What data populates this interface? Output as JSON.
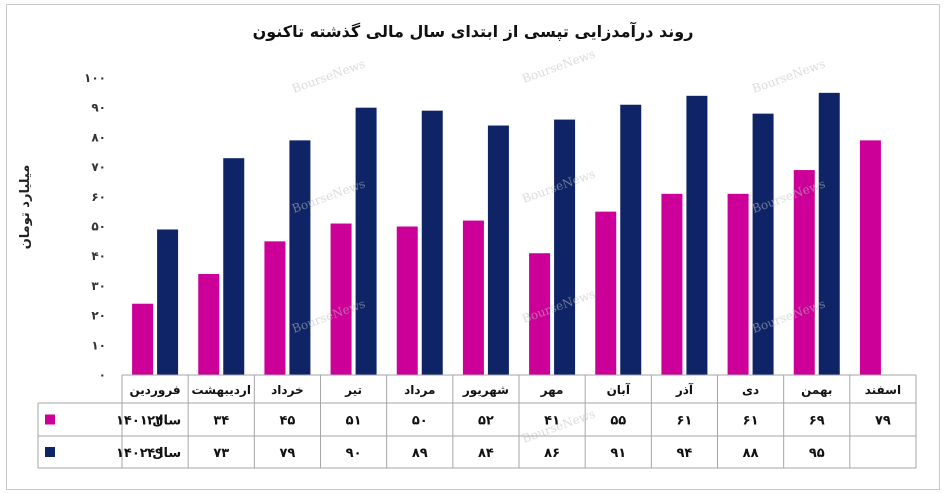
{
  "chart_data": {
    "type": "bar",
    "title": "روند درآمدزایی تپسی از ابتدای سال مالی گذشته تاکنون",
    "ylabel": "میلیارد تومان",
    "xlabel": "",
    "ylim": [
      0,
      100
    ],
    "y_ticks": [
      "۰",
      "۱۰",
      "۲۰",
      "۳۰",
      "۴۰",
      "۵۰",
      "۶۰",
      "۷۰",
      "۸۰",
      "۹۰",
      "۱۰۰"
    ],
    "categories": [
      "فروردین",
      "اردیبهشت",
      "خرداد",
      "تیر",
      "مرداد",
      "شهریور",
      "مهر",
      "آبان",
      "آذر",
      "دی",
      "بهمن",
      "اسفند"
    ],
    "series": [
      {
        "name": "سال ۱۴۰۱",
        "color": "#cc0099",
        "values": [
          24,
          34,
          45,
          51,
          50,
          52,
          41,
          55,
          61,
          61,
          69,
          79
        ],
        "labels": [
          "۲۴",
          "۳۴",
          "۴۵",
          "۵۱",
          "۵۰",
          "۵۲",
          "۴۱",
          "۵۵",
          "۶۱",
          "۶۱",
          "۶۹",
          "۷۹"
        ]
      },
      {
        "name": "سال ۱۴۰۲",
        "color": "#0f2466",
        "values": [
          49,
          73,
          79,
          90,
          89,
          84,
          86,
          91,
          94,
          88,
          95,
          null
        ],
        "labels": [
          "۴۹",
          "۷۳",
          "۷۹",
          "۹۰",
          "۸۹",
          "۸۴",
          "۸۶",
          "۹۱",
          "۹۴",
          "۸۸",
          "۹۵",
          ""
        ]
      }
    ],
    "grid": false,
    "legend": "in-table"
  },
  "watermark": "BourseNews"
}
